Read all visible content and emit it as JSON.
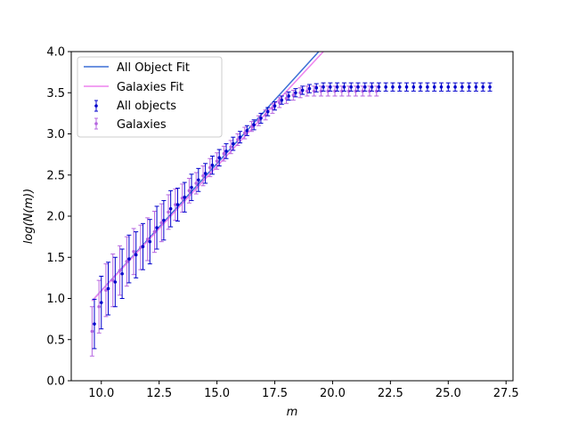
{
  "chart_data": {
    "type": "scatter",
    "title": "",
    "xlabel": "m",
    "ylabel": "log(N(m))",
    "xlim": [
      8.7,
      27.8
    ],
    "ylim": [
      0.0,
      4.0
    ],
    "xticks": [
      10.0,
      12.5,
      15.0,
      17.5,
      20.0,
      22.5,
      25.0,
      27.5
    ],
    "xtick_labels": [
      "10.0",
      "12.5",
      "15.0",
      "17.5",
      "20.0",
      "22.5",
      "25.0",
      "27.5"
    ],
    "yticks": [
      0.0,
      0.5,
      1.0,
      1.5,
      2.0,
      2.5,
      3.0,
      3.5,
      4.0
    ],
    "ytick_labels": [
      "0.0",
      "0.5",
      "1.0",
      "1.5",
      "2.0",
      "2.5",
      "3.0",
      "3.5",
      "4.0"
    ],
    "grid": false,
    "legend_position": "top-left",
    "legend": [
      "All Object Fit",
      "Galaxies Fit",
      "All objects",
      "Galaxies"
    ],
    "fits": [
      {
        "name": "All Object Fit",
        "color": "#3b6fd6",
        "x": [
          9.6,
          19.4
        ],
        "y": [
          0.97,
          4.0
        ]
      },
      {
        "name": "Galaxies Fit",
        "color": "#ee82ee",
        "x": [
          9.6,
          19.6
        ],
        "y": [
          0.97,
          4.0
        ]
      }
    ],
    "series": [
      {
        "name": "All objects",
        "color": "#0000cc",
        "marker": "point",
        "x": [
          9.7,
          10.0,
          10.3,
          10.6,
          10.9,
          11.2,
          11.5,
          11.8,
          12.1,
          12.4,
          12.7,
          13.0,
          13.3,
          13.6,
          13.9,
          14.2,
          14.5,
          14.8,
          15.1,
          15.4,
          15.7,
          16.0,
          16.3,
          16.6,
          16.9,
          17.2,
          17.5,
          17.8,
          18.1,
          18.4,
          18.7,
          19.0,
          19.3,
          19.6,
          19.9,
          20.2,
          20.5,
          20.8,
          21.1,
          21.4,
          21.7,
          22.0,
          22.3,
          22.6,
          22.9,
          23.2,
          23.5,
          23.8,
          24.1,
          24.4,
          24.7,
          25.0,
          25.3,
          25.6,
          25.9,
          26.2,
          26.5,
          26.8
        ],
        "y": [
          0.69,
          0.95,
          1.12,
          1.2,
          1.3,
          1.48,
          1.53,
          1.63,
          1.69,
          1.86,
          1.95,
          2.09,
          2.14,
          2.23,
          2.35,
          2.44,
          2.52,
          2.62,
          2.71,
          2.79,
          2.88,
          2.96,
          3.04,
          3.11,
          3.19,
          3.27,
          3.34,
          3.41,
          3.46,
          3.5,
          3.53,
          3.55,
          3.56,
          3.57,
          3.57,
          3.57,
          3.57,
          3.57,
          3.57,
          3.57,
          3.57,
          3.57,
          3.57,
          3.57,
          3.57,
          3.57,
          3.57,
          3.57,
          3.57,
          3.57,
          3.57,
          3.57,
          3.57,
          3.57,
          3.57,
          3.57,
          3.57,
          3.57
        ],
        "err": [
          0.3,
          0.32,
          0.32,
          0.3,
          0.3,
          0.29,
          0.28,
          0.28,
          0.27,
          0.26,
          0.24,
          0.22,
          0.2,
          0.18,
          0.16,
          0.14,
          0.12,
          0.11,
          0.1,
          0.09,
          0.08,
          0.07,
          0.06,
          0.06,
          0.06,
          0.05,
          0.05,
          0.05,
          0.05,
          0.05,
          0.05,
          0.05,
          0.05,
          0.05,
          0.05,
          0.05,
          0.05,
          0.05,
          0.05,
          0.05,
          0.05,
          0.05,
          0.05,
          0.05,
          0.05,
          0.05,
          0.05,
          0.05,
          0.05,
          0.05,
          0.05,
          0.05,
          0.05,
          0.05,
          0.05,
          0.05,
          0.05,
          0.05
        ]
      },
      {
        "name": "Galaxies",
        "color": "#b565e0",
        "marker": "point",
        "x": [
          9.6,
          9.9,
          10.2,
          10.5,
          10.8,
          11.1,
          11.4,
          11.7,
          12.0,
          12.3,
          12.6,
          12.9,
          13.2,
          13.5,
          13.8,
          14.1,
          14.4,
          14.7,
          15.0,
          15.3,
          15.6,
          15.9,
          16.2,
          16.5,
          16.8,
          17.1,
          17.4,
          17.7,
          18.0,
          18.3,
          18.6,
          18.9,
          19.2,
          19.5,
          19.8,
          20.1,
          20.4,
          20.7,
          21.0,
          21.3,
          21.6,
          21.9
        ],
        "y": [
          0.6,
          0.9,
          1.1,
          1.22,
          1.34,
          1.45,
          1.57,
          1.62,
          1.72,
          1.81,
          1.92,
          2.05,
          2.14,
          2.22,
          2.31,
          2.4,
          2.49,
          2.59,
          2.67,
          2.76,
          2.84,
          2.93,
          3.01,
          3.09,
          3.16,
          3.23,
          3.31,
          3.38,
          3.43,
          3.47,
          3.5,
          3.52,
          3.52,
          3.52,
          3.52,
          3.52,
          3.52,
          3.52,
          3.52,
          3.52,
          3.52,
          3.52
        ],
        "err": [
          0.3,
          0.32,
          0.32,
          0.32,
          0.3,
          0.3,
          0.28,
          0.27,
          0.26,
          0.25,
          0.23,
          0.21,
          0.19,
          0.17,
          0.15,
          0.13,
          0.12,
          0.11,
          0.1,
          0.09,
          0.08,
          0.07,
          0.07,
          0.06,
          0.06,
          0.06,
          0.06,
          0.06,
          0.06,
          0.06,
          0.06,
          0.06,
          0.06,
          0.06,
          0.06,
          0.06,
          0.06,
          0.06,
          0.06,
          0.06,
          0.06,
          0.06
        ]
      }
    ]
  }
}
